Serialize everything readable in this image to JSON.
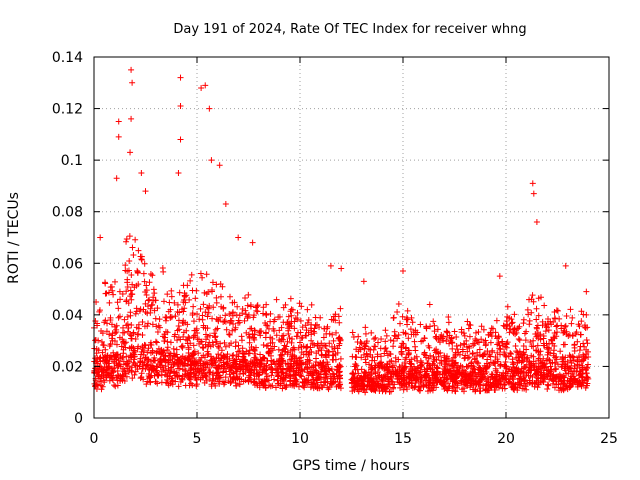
{
  "chart_data": {
    "type": "scatter",
    "title": "Day 191 of 2024, Rate Of TEC Index for receiver whng",
    "xlabel": "GPS time / hours",
    "ylabel": "ROTI / TECUs",
    "xlim": [
      0,
      25
    ],
    "ylim": [
      0,
      0.14
    ],
    "xticks": [
      0,
      5,
      10,
      15,
      20,
      25
    ],
    "yticks": [
      0,
      0.02,
      0.04,
      0.06,
      0.08,
      0.1,
      0.12,
      0.14
    ],
    "xtick_labels": [
      "0",
      "5",
      "10",
      "15",
      "20",
      "25"
    ],
    "ytick_labels": [
      "0",
      "0.02",
      "0.04",
      "0.06",
      "0.08",
      "0.1",
      "0.12",
      "0.14"
    ],
    "grid": true,
    "marker": "+",
    "marker_color": "#ff0000",
    "data_gap_hours": [
      12.0,
      12.5
    ],
    "series": [
      {
        "name": "ROTI",
        "notable_points": [
          {
            "x": 1.8,
            "y": 0.135
          },
          {
            "x": 1.85,
            "y": 0.13
          },
          {
            "x": 4.2,
            "y": 0.132
          },
          {
            "x": 5.4,
            "y": 0.129
          },
          {
            "x": 5.2,
            "y": 0.128
          },
          {
            "x": 1.8,
            "y": 0.116
          },
          {
            "x": 1.2,
            "y": 0.115
          },
          {
            "x": 4.2,
            "y": 0.121
          },
          {
            "x": 5.6,
            "y": 0.12
          },
          {
            "x": 1.2,
            "y": 0.109
          },
          {
            "x": 4.2,
            "y": 0.108
          },
          {
            "x": 1.75,
            "y": 0.103
          },
          {
            "x": 5.7,
            "y": 0.1
          },
          {
            "x": 6.1,
            "y": 0.098
          },
          {
            "x": 2.3,
            "y": 0.095
          },
          {
            "x": 1.1,
            "y": 0.093
          },
          {
            "x": 4.1,
            "y": 0.095
          },
          {
            "x": 21.3,
            "y": 0.091
          },
          {
            "x": 21.35,
            "y": 0.087
          },
          {
            "x": 6.4,
            "y": 0.083
          },
          {
            "x": 2.5,
            "y": 0.088
          },
          {
            "x": 0.3,
            "y": 0.07
          },
          {
            "x": 7.0,
            "y": 0.07
          },
          {
            "x": 7.7,
            "y": 0.068
          },
          {
            "x": 11.5,
            "y": 0.059
          },
          {
            "x": 12.0,
            "y": 0.058
          },
          {
            "x": 13.1,
            "y": 0.053
          },
          {
            "x": 15.0,
            "y": 0.057
          },
          {
            "x": 16.3,
            "y": 0.044
          },
          {
            "x": 19.7,
            "y": 0.055
          },
          {
            "x": 21.5,
            "y": 0.076
          },
          {
            "x": 22.9,
            "y": 0.059
          },
          {
            "x": 23.9,
            "y": 0.049
          },
          {
            "x": 23.9,
            "y": 0.04
          },
          {
            "x": 0.1,
            "y": 0.045
          }
        ],
        "segments": [
          {
            "t0": 0.0,
            "t1": 0.5,
            "base": 0.016,
            "spread": 0.012,
            "max": 0.06
          },
          {
            "t0": 0.5,
            "t1": 1.5,
            "base": 0.02,
            "spread": 0.016,
            "max": 0.07
          },
          {
            "t0": 1.5,
            "t1": 2.5,
            "base": 0.024,
            "spread": 0.02,
            "max": 0.085
          },
          {
            "t0": 2.5,
            "t1": 3.5,
            "base": 0.022,
            "spread": 0.017,
            "max": 0.075
          },
          {
            "t0": 3.5,
            "t1": 4.5,
            "base": 0.02,
            "spread": 0.014,
            "max": 0.06
          },
          {
            "t0": 4.5,
            "t1": 6.5,
            "base": 0.02,
            "spread": 0.016,
            "max": 0.075
          },
          {
            "t0": 6.5,
            "t1": 8.5,
            "base": 0.018,
            "spread": 0.013,
            "max": 0.052
          },
          {
            "t0": 8.5,
            "t1": 10.5,
            "base": 0.018,
            "spread": 0.012,
            "max": 0.048
          },
          {
            "t0": 10.5,
            "t1": 12.0,
            "base": 0.017,
            "spread": 0.011,
            "max": 0.05
          },
          {
            "t0": 12.5,
            "t1": 14.5,
            "base": 0.014,
            "spread": 0.009,
            "max": 0.042
          },
          {
            "t0": 14.5,
            "t1": 15.5,
            "base": 0.016,
            "spread": 0.012,
            "max": 0.05
          },
          {
            "t0": 15.5,
            "t1": 17.5,
            "base": 0.015,
            "spread": 0.01,
            "max": 0.04
          },
          {
            "t0": 17.5,
            "t1": 20.0,
            "base": 0.015,
            "spread": 0.01,
            "max": 0.04
          },
          {
            "t0": 20.0,
            "t1": 21.0,
            "base": 0.016,
            "spread": 0.012,
            "max": 0.05
          },
          {
            "t0": 21.0,
            "t1": 22.0,
            "base": 0.018,
            "spread": 0.015,
            "max": 0.065
          },
          {
            "t0": 22.0,
            "t1": 24.0,
            "base": 0.016,
            "spread": 0.012,
            "max": 0.05
          }
        ]
      }
    ]
  }
}
